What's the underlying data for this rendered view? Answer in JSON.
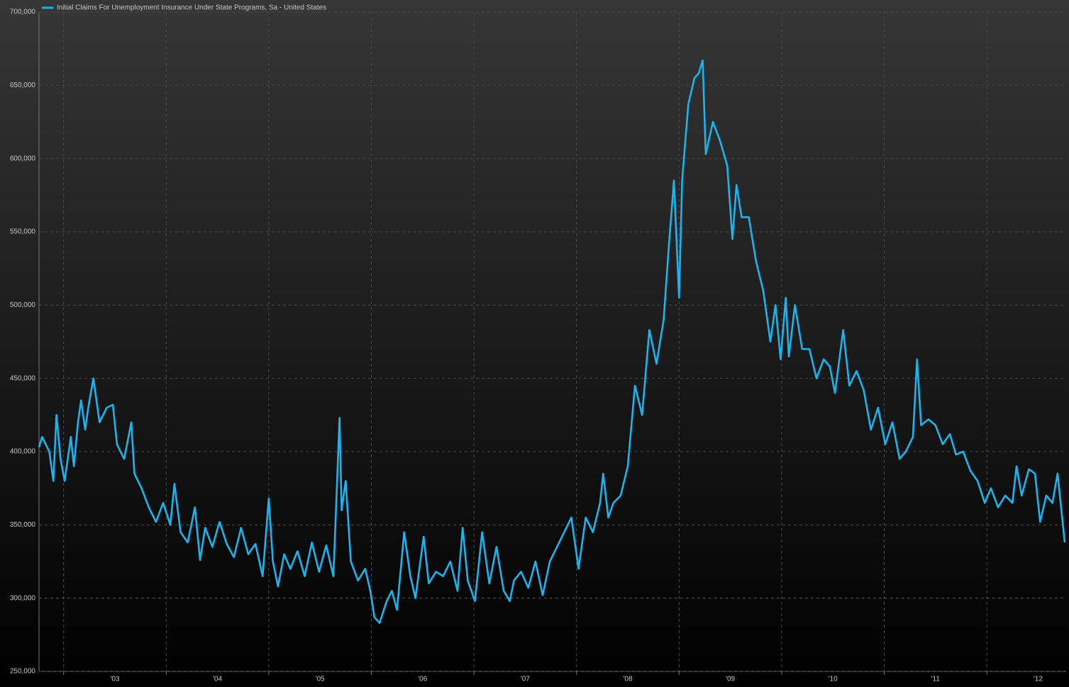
{
  "chart_data": {
    "type": "line",
    "xlim": [
      2002.76,
      2012.76
    ],
    "xticks": [
      {
        "value": 2003,
        "label": "'03"
      },
      {
        "value": 2004,
        "label": "'04"
      },
      {
        "value": 2005,
        "label": "'05"
      },
      {
        "value": 2006,
        "label": "'06"
      },
      {
        "value": 2007,
        "label": "'07"
      },
      {
        "value": 2008,
        "label": "'08"
      },
      {
        "value": 2009,
        "label": "'09"
      },
      {
        "value": 2010,
        "label": "'10"
      },
      {
        "value": 2011,
        "label": "'11"
      },
      {
        "value": 2012,
        "label": "'12"
      }
    ],
    "ylim": [
      250000,
      700000
    ],
    "yticks": [
      {
        "value": 250000,
        "label": "250,000"
      },
      {
        "value": 300000,
        "label": "300,000"
      },
      {
        "value": 350000,
        "label": "350,000"
      },
      {
        "value": 400000,
        "label": "400,000"
      },
      {
        "value": 450000,
        "label": "450,000"
      },
      {
        "value": 500000,
        "label": "500,000"
      },
      {
        "value": 550000,
        "label": "550,000"
      },
      {
        "value": 600000,
        "label": "600,000"
      },
      {
        "value": 650000,
        "label": "650,000"
      },
      {
        "value": 700000,
        "label": "700,000"
      }
    ],
    "grid": true,
    "legend": "top-left",
    "x": [
      2002.76,
      2002.79,
      2002.86,
      2002.9,
      2002.93,
      2002.97,
      2003.01,
      2003.07,
      2003.1,
      2003.14,
      2003.17,
      2003.21,
      2003.24,
      2003.29,
      2003.35,
      2003.42,
      2003.48,
      2003.52,
      2003.59,
      2003.66,
      2003.69,
      2003.76,
      2003.83,
      2003.9,
      2003.97,
      2004.04,
      2004.08,
      2004.14,
      2004.21,
      2004.28,
      2004.33,
      2004.38,
      2004.45,
      2004.52,
      2004.59,
      2004.66,
      2004.73,
      2004.8,
      2004.87,
      2004.94,
      2005.0,
      2005.04,
      2005.09,
      2005.15,
      2005.21,
      2005.28,
      2005.35,
      2005.42,
      2005.49,
      2005.56,
      2005.63,
      2005.69,
      2005.71,
      2005.75,
      2005.8,
      2005.87,
      2005.94,
      2005.99,
      2006.03,
      2006.08,
      2006.15,
      2006.2,
      2006.25,
      2006.32,
      2006.38,
      2006.43,
      2006.51,
      2006.56,
      2006.63,
      2006.7,
      2006.77,
      2006.84,
      2006.89,
      2006.94,
      2007.01,
      2007.08,
      2007.15,
      2007.22,
      2007.29,
      2007.35,
      2007.39,
      2007.46,
      2007.53,
      2007.6,
      2007.67,
      2007.74,
      2007.81,
      2007.88,
      2007.95,
      2008.02,
      2008.09,
      2008.16,
      2008.23,
      2008.26,
      2008.31,
      2008.36,
      2008.43,
      2008.5,
      2008.57,
      2008.64,
      2008.71,
      2008.78,
      2008.85,
      2008.9,
      2008.95,
      2009.0,
      2009.03,
      2009.09,
      2009.15,
      2009.19,
      2009.23,
      2009.26,
      2009.33,
      2009.4,
      2009.47,
      2009.52,
      2009.56,
      2009.61,
      2009.68,
      2009.75,
      2009.82,
      2009.89,
      2009.94,
      2009.99,
      2010.04,
      2010.07,
      2010.13,
      2010.2,
      2010.27,
      2010.34,
      2010.41,
      2010.47,
      2010.52,
      2010.6,
      2010.66,
      2010.73,
      2010.8,
      2010.87,
      2010.94,
      2011.01,
      2011.08,
      2011.15,
      2011.21,
      2011.28,
      2011.32,
      2011.36,
      2011.43,
      2011.5,
      2011.57,
      2011.64,
      2011.7,
      2011.77,
      2011.84,
      2011.91,
      2011.98,
      2012.04,
      2012.11,
      2012.18,
      2012.25,
      2012.29,
      2012.34,
      2012.41,
      2012.47,
      2012.52,
      2012.58,
      2012.64,
      2012.69,
      2012.72,
      2012.76
    ],
    "series": [
      {
        "name": "Initial Claims For Unemployment Insurance Under State Programs, Sa - United States",
        "color": "#1ab4ee",
        "values": [
          403000,
          410000,
          400000,
          380000,
          425000,
          395000,
          380000,
          410000,
          390000,
          420000,
          435000,
          415000,
          430000,
          450000,
          420000,
          430000,
          432000,
          405000,
          395000,
          420000,
          385000,
          375000,
          362000,
          352000,
          365000,
          350000,
          378000,
          345000,
          338000,
          362000,
          326000,
          348000,
          335000,
          352000,
          337000,
          328000,
          348000,
          330000,
          337000,
          315000,
          368000,
          325000,
          308000,
          330000,
          320000,
          332000,
          315000,
          338000,
          318000,
          336000,
          315000,
          423000,
          360000,
          380000,
          325000,
          312000,
          320000,
          305000,
          287000,
          283000,
          298000,
          305000,
          292000,
          345000,
          315000,
          300000,
          342000,
          310000,
          318000,
          315000,
          325000,
          305000,
          348000,
          312000,
          298000,
          345000,
          310000,
          335000,
          305000,
          298000,
          312000,
          318000,
          307000,
          325000,
          302000,
          325000,
          335000,
          345000,
          355000,
          320000,
          355000,
          345000,
          365000,
          385000,
          355000,
          365000,
          370000,
          390000,
          445000,
          425000,
          483000,
          460000,
          490000,
          540000,
          585000,
          505000,
          585000,
          637000,
          655000,
          658000,
          667000,
          603000,
          625000,
          612000,
          595000,
          545000,
          582000,
          560000,
          560000,
          530000,
          510000,
          475000,
          500000,
          463000,
          505000,
          465000,
          500000,
          470000,
          470000,
          450000,
          463000,
          458000,
          440000,
          483000,
          445000,
          455000,
          442000,
          415000,
          430000,
          405000,
          420000,
          395000,
          400000,
          410000,
          463000,
          418000,
          422000,
          418000,
          405000,
          412000,
          398000,
          400000,
          387000,
          380000,
          365000,
          375000,
          362000,
          370000,
          365000,
          390000,
          370000,
          388000,
          385000,
          352000,
          370000,
          365000,
          385000,
          365000,
          338000
        ]
      }
    ]
  }
}
